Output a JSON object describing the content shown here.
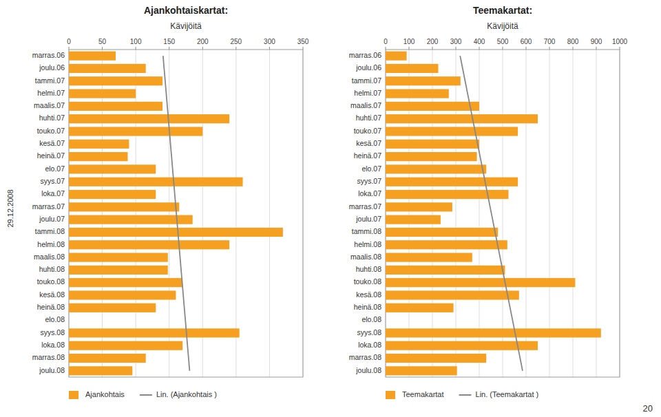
{
  "chart_data": [
    {
      "type": "bar",
      "orientation": "horizontal",
      "title": "Ajankohtaiskartat:",
      "x_label": "Kävijöitä",
      "categories": [
        "marras.06",
        "joulu.06",
        "tammi.07",
        "helmi.07",
        "maalis.07",
        "huhti.07",
        "touko.07",
        "kesä.07",
        "heinä.07",
        "elo.07",
        "syys.07",
        "loka.07",
        "marras.07",
        "joulu.07",
        "tammi.08",
        "helmi.08",
        "maalis.08",
        "huhti.08",
        "touko.08",
        "kesä.08",
        "heinä.08",
        "elo.08",
        "syys.08",
        "loka.08",
        "marras.08",
        "joulu.08"
      ],
      "series": [
        {
          "name": "Ajankohtais",
          "type": "bar",
          "color": "#F5A020",
          "values": [
            70,
            115,
            140,
            100,
            140,
            240,
            200,
            90,
            88,
            130,
            260,
            130,
            165,
            185,
            320,
            240,
            148,
            148,
            170,
            160,
            130,
            0,
            255,
            170,
            115,
            95
          ]
        },
        {
          "name": "Lin. (Ajankohtais )",
          "type": "line",
          "color": "#888888",
          "line_style": "solid",
          "values": [
            140.84,
            142.43,
            144.02,
            145.61,
            147.19,
            148.78,
            150.37,
            151.96,
            153.55,
            155.14,
            156.73,
            158.32,
            159.91,
            161.49,
            163.08,
            164.67,
            166.26,
            167.85,
            169.44,
            171.03,
            172.62,
            174.21,
            175.79,
            177.38,
            178.97,
            180.56
          ]
        }
      ],
      "xlim": [
        0,
        350
      ],
      "xticks": [
        0,
        50,
        100,
        150,
        200,
        250,
        300,
        350
      ],
      "grid": true,
      "legend": "bottom",
      "annotations": [
        "29.12.2008"
      ]
    },
    {
      "type": "bar",
      "orientation": "horizontal",
      "title": "Teemakartat:",
      "x_label": "Kävijöitä",
      "categories": [
        "marras.06",
        "joulu.06",
        "tammi.07",
        "helmi.07",
        "maalis.07",
        "huhti.07",
        "touko.07",
        "kesä.07",
        "heinä.07",
        "elo.07",
        "syys.07",
        "loka.07",
        "marras.07",
        "joulu.07",
        "tammi.08",
        "helmi.08",
        "maalis.08",
        "huhti.08",
        "touko.08",
        "kesä.08",
        "heinä.08",
        "elo.08",
        "syys.08",
        "loka.08",
        "marras.08",
        "joulu.08"
      ],
      "series": [
        {
          "name": "Teemakartat",
          "type": "bar",
          "color": "#F5A020",
          "values": [
            90,
            225,
            320,
            270,
            400,
            650,
            565,
            400,
            390,
            430,
            565,
            525,
            285,
            235,
            480,
            520,
            370,
            510,
            810,
            570,
            290,
            0,
            920,
            650,
            430,
            305
          ]
        },
        {
          "name": "Lin. (Teemakartat )",
          "type": "line",
          "color": "#888888",
          "line_style": "solid",
          "values": [
            318.42,
            329.09,
            339.76,
            350.44,
            361.11,
            371.78,
            382.45,
            393.13,
            403.8,
            414.47,
            425.15,
            435.82,
            446.49,
            457.17,
            467.84,
            478.51,
            489.18,
            499.86,
            510.53,
            521.2,
            531.88,
            542.55,
            553.22,
            563.89,
            574.57,
            585.24
          ]
        }
      ],
      "xlim": [
        0,
        1000
      ],
      "xticks": [
        0,
        100,
        200,
        300,
        400,
        500,
        600,
        700,
        800,
        900,
        1000
      ],
      "grid": true,
      "legend": "bottom",
      "annotations": [
        "20"
      ]
    }
  ]
}
